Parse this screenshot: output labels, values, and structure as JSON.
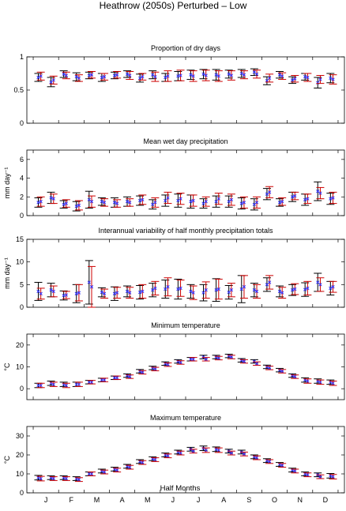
{
  "figure_title": "Heathrow (2050s) Perturbed – Low",
  "xlabel": "Half Months",
  "month_labels": [
    "J",
    "F",
    "M",
    "A",
    "M",
    "J",
    "J",
    "A",
    "S",
    "O",
    "N",
    "D"
  ],
  "colors": {
    "series_a": "#000000",
    "series_b": "#cc0000",
    "marker": "#3333ff"
  },
  "chart_data": [
    {
      "type": "errorbar",
      "title": "Proportion of dry days",
      "ylabel": "",
      "ylim": [
        0,
        1
      ],
      "yticks": [
        0,
        0.5,
        1
      ],
      "ytick_labels": [
        "0",
        "0.5",
        "1"
      ],
      "x": [
        1,
        2,
        3,
        4,
        5,
        6,
        7,
        8,
        9,
        10,
        11,
        12,
        13,
        14,
        15,
        16,
        17,
        18,
        19,
        20,
        21,
        22,
        23,
        24
      ],
      "series": [
        {
          "values": [
            0.69,
            0.62,
            0.74,
            0.7,
            0.72,
            0.69,
            0.72,
            0.74,
            0.68,
            0.73,
            0.69,
            0.71,
            0.73,
            0.74,
            0.73,
            0.74,
            0.75,
            0.77,
            0.64,
            0.73,
            0.65,
            0.7,
            0.61,
            0.68
          ],
          "err": [
            0.06,
            0.07,
            0.05,
            0.06,
            0.05,
            0.06,
            0.05,
            0.05,
            0.06,
            0.06,
            0.06,
            0.07,
            0.07,
            0.07,
            0.08,
            0.06,
            0.06,
            0.05,
            0.06,
            0.05,
            0.05,
            0.05,
            0.08,
            0.07
          ]
        },
        {
          "values": [
            0.71,
            0.65,
            0.72,
            0.68,
            0.73,
            0.7,
            0.73,
            0.72,
            0.7,
            0.7,
            0.71,
            0.72,
            0.71,
            0.72,
            0.71,
            0.72,
            0.73,
            0.74,
            0.68,
            0.71,
            0.67,
            0.69,
            0.66,
            0.66
          ],
          "err": [
            0.06,
            0.06,
            0.05,
            0.05,
            0.05,
            0.05,
            0.05,
            0.06,
            0.05,
            0.07,
            0.08,
            0.08,
            0.08,
            0.08,
            0.08,
            0.07,
            0.06,
            0.06,
            0.06,
            0.05,
            0.05,
            0.06,
            0.06,
            0.07
          ]
        }
      ]
    },
    {
      "type": "errorbar",
      "title": "Mean wet day precipitation",
      "ylabel": "mm day⁻¹",
      "ylim": [
        0,
        7
      ],
      "yticks": [
        0,
        2,
        4,
        6
      ],
      "ytick_labels": [
        "0",
        "2",
        "4",
        "6"
      ],
      "x": [
        1,
        2,
        3,
        4,
        5,
        6,
        7,
        8,
        9,
        10,
        11,
        12,
        13,
        14,
        15,
        16,
        17,
        18,
        19,
        20,
        21,
        22,
        23,
        24
      ],
      "series": [
        {
          "values": [
            1.4,
            1.9,
            1.2,
            1.0,
            1.7,
            1.5,
            1.4,
            1.5,
            1.6,
            1.2,
            1.6,
            1.6,
            1.5,
            1.3,
            1.5,
            1.5,
            1.3,
            1.2,
            2.3,
            1.4,
            2.0,
            1.7,
            2.6,
            1.8
          ],
          "err": [
            0.5,
            0.6,
            0.4,
            0.5,
            0.9,
            0.4,
            0.5,
            0.5,
            0.5,
            0.5,
            0.6,
            0.7,
            0.7,
            0.5,
            0.6,
            0.6,
            0.6,
            0.6,
            0.6,
            0.4,
            0.5,
            0.6,
            1.0,
            0.6
          ]
        },
        {
          "values": [
            1.5,
            1.8,
            1.3,
            1.1,
            1.5,
            1.4,
            1.3,
            1.4,
            1.7,
            1.4,
            1.9,
            1.8,
            1.6,
            1.5,
            1.8,
            1.7,
            1.4,
            1.4,
            2.5,
            1.5,
            2.1,
            1.8,
            2.4,
            1.9
          ],
          "err": [
            0.5,
            0.5,
            0.4,
            0.5,
            0.6,
            0.4,
            0.4,
            0.4,
            0.5,
            0.5,
            0.6,
            0.6,
            0.6,
            0.5,
            0.6,
            0.6,
            0.6,
            0.6,
            0.6,
            0.4,
            0.4,
            0.5,
            0.6,
            0.6
          ]
        }
      ]
    },
    {
      "type": "errorbar",
      "title": "Interannual variability of half monthly precipitation totals",
      "ylabel": "mm day⁻¹",
      "ylim": [
        0,
        15
      ],
      "yticks": [
        0,
        5,
        10,
        15
      ],
      "ytick_labels": [
        "0",
        "5",
        "10",
        "15"
      ],
      "x": [
        1,
        2,
        3,
        4,
        5,
        6,
        7,
        8,
        9,
        10,
        11,
        12,
        13,
        14,
        15,
        16,
        17,
        18,
        19,
        20,
        21,
        22,
        23,
        24
      ],
      "series": [
        {
          "values": [
            3.5,
            3.8,
            2.6,
            3.0,
            5.5,
            3.3,
            3.0,
            3.5,
            3.3,
            3.8,
            4.0,
            4.0,
            3.5,
            3.2,
            3.8,
            3.3,
            4.0,
            3.8,
            5.0,
            3.5,
            3.8,
            3.9,
            5.5,
            4.2
          ],
          "err": [
            2.0,
            1.5,
            1.0,
            2.0,
            4.8,
            1.0,
            1.5,
            1.2,
            1.5,
            1.5,
            2.0,
            2.2,
            1.5,
            1.8,
            2.5,
            1.5,
            3.0,
            1.5,
            1.5,
            1.2,
            1.2,
            1.5,
            2.0,
            1.5
          ]
        },
        {
          "values": [
            3.0,
            3.5,
            2.7,
            3.2,
            4.5,
            3.0,
            3.2,
            3.2,
            3.5,
            4.2,
            4.5,
            4.2,
            3.2,
            3.8,
            4.0,
            3.8,
            4.5,
            3.5,
            5.5,
            3.2,
            4.0,
            4.2,
            5.0,
            4.5
          ],
          "err": [
            1.2,
            1.2,
            0.8,
            1.8,
            4.5,
            1.0,
            1.2,
            1.2,
            1.5,
            1.5,
            2.0,
            1.8,
            1.5,
            1.8,
            2.2,
            1.5,
            2.5,
            1.5,
            1.5,
            1.2,
            1.2,
            1.5,
            1.5,
            1.2
          ]
        }
      ]
    },
    {
      "type": "errorbar",
      "title": "Minimum temperature",
      "ylabel": "°C",
      "ylim": [
        -5,
        25
      ],
      "yticks": [
        0,
        10,
        20
      ],
      "ytick_labels": [
        "0",
        "10",
        "20"
      ],
      "x": [
        1,
        2,
        3,
        4,
        5,
        6,
        7,
        8,
        9,
        10,
        11,
        12,
        13,
        14,
        15,
        16,
        17,
        18,
        19,
        20,
        21,
        22,
        23,
        24
      ],
      "series": [
        {
          "values": [
            1.5,
            2.5,
            2.0,
            2.0,
            3.0,
            4.0,
            5.0,
            6.0,
            8.0,
            9.5,
            11.5,
            12.5,
            13.5,
            14.5,
            14.5,
            15.0,
            13.0,
            12.5,
            10.0,
            8.5,
            6.0,
            4.0,
            3.5,
            3.0
          ],
          "err": [
            1.0,
            1.0,
            1.0,
            1.0,
            0.8,
            0.8,
            0.8,
            0.8,
            0.8,
            0.8,
            0.8,
            0.8,
            0.8,
            0.8,
            0.8,
            0.8,
            0.8,
            0.8,
            0.8,
            0.8,
            0.8,
            1.0,
            1.0,
            1.0
          ]
        },
        {
          "values": [
            1.5,
            2.0,
            1.5,
            2.0,
            3.0,
            4.0,
            5.0,
            5.5,
            7.5,
            9.0,
            11.0,
            12.0,
            13.5,
            13.5,
            14.0,
            14.5,
            12.5,
            11.5,
            9.5,
            8.0,
            5.5,
            3.5,
            3.0,
            2.5
          ],
          "err": [
            1.0,
            1.0,
            1.0,
            1.0,
            0.8,
            0.8,
            0.8,
            0.8,
            0.8,
            0.8,
            0.8,
            0.8,
            0.8,
            0.8,
            0.8,
            0.8,
            0.8,
            0.8,
            0.8,
            0.8,
            0.8,
            1.0,
            1.0,
            1.0
          ]
        }
      ]
    },
    {
      "type": "errorbar",
      "title": "Maximum temperature",
      "ylabel": "°C",
      "ylim": [
        0,
        35
      ],
      "yticks": [
        0,
        10,
        20,
        30
      ],
      "ytick_labels": [
        "0",
        "10",
        "20",
        "30"
      ],
      "x": [
        1,
        2,
        3,
        4,
        5,
        6,
        7,
        8,
        9,
        10,
        11,
        12,
        13,
        14,
        15,
        16,
        17,
        18,
        19,
        20,
        21,
        22,
        23,
        24
      ],
      "series": [
        {
          "values": [
            8.0,
            8.0,
            8.0,
            7.5,
            10.0,
            11.5,
            12.5,
            14.0,
            16.5,
            18.0,
            20.0,
            21.5,
            23.0,
            23.5,
            23.0,
            22.0,
            21.5,
            19.0,
            17.0,
            15.0,
            12.0,
            10.0,
            9.5,
            9.0
          ],
          "err": [
            1.2,
            1.0,
            1.0,
            1.0,
            1.0,
            1.0,
            1.0,
            1.0,
            1.0,
            1.0,
            1.0,
            1.0,
            1.0,
            1.2,
            1.2,
            1.0,
            1.0,
            1.0,
            1.0,
            1.0,
            1.0,
            1.0,
            1.0,
            1.2
          ]
        },
        {
          "values": [
            7.5,
            7.5,
            7.5,
            7.0,
            10.0,
            11.0,
            12.0,
            13.5,
            16.0,
            17.5,
            19.5,
            21.0,
            22.0,
            22.5,
            22.5,
            21.0,
            20.5,
            18.5,
            16.5,
            14.5,
            11.5,
            9.5,
            8.5,
            8.5
          ],
          "err": [
            1.2,
            1.0,
            1.0,
            1.0,
            1.0,
            1.0,
            1.0,
            1.0,
            1.0,
            1.0,
            1.0,
            1.0,
            1.0,
            1.2,
            1.2,
            1.0,
            1.0,
            1.0,
            1.0,
            1.0,
            1.0,
            1.0,
            1.0,
            1.2
          ]
        }
      ]
    }
  ]
}
